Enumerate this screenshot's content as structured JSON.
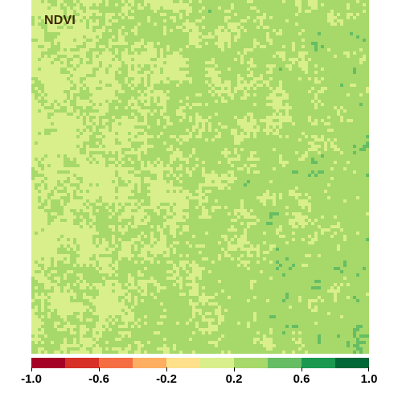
{
  "map": {
    "title": "NDVI",
    "colorbar": {
      "min": -1.0,
      "max": 1.0,
      "colors": [
        "#a50026",
        "#d73027",
        "#f46d43",
        "#fdae61",
        "#fee08b",
        "#d9ef8b",
        "#a6d96a",
        "#66bd63",
        "#1a9850",
        "#006837"
      ],
      "tick_values": [
        -1.0,
        -0.6,
        -0.2,
        0.2,
        0.6,
        1.0
      ],
      "tick_labels": [
        "-1.0",
        "-0.6",
        "-0.2",
        "0.2",
        "0.6",
        "1.0"
      ]
    },
    "raster": {
      "dominant_colors": [
        "#d9ef8b",
        "#a6d96a",
        "#66bd63"
      ],
      "value_range": [
        0.2,
        0.6
      ]
    }
  }
}
